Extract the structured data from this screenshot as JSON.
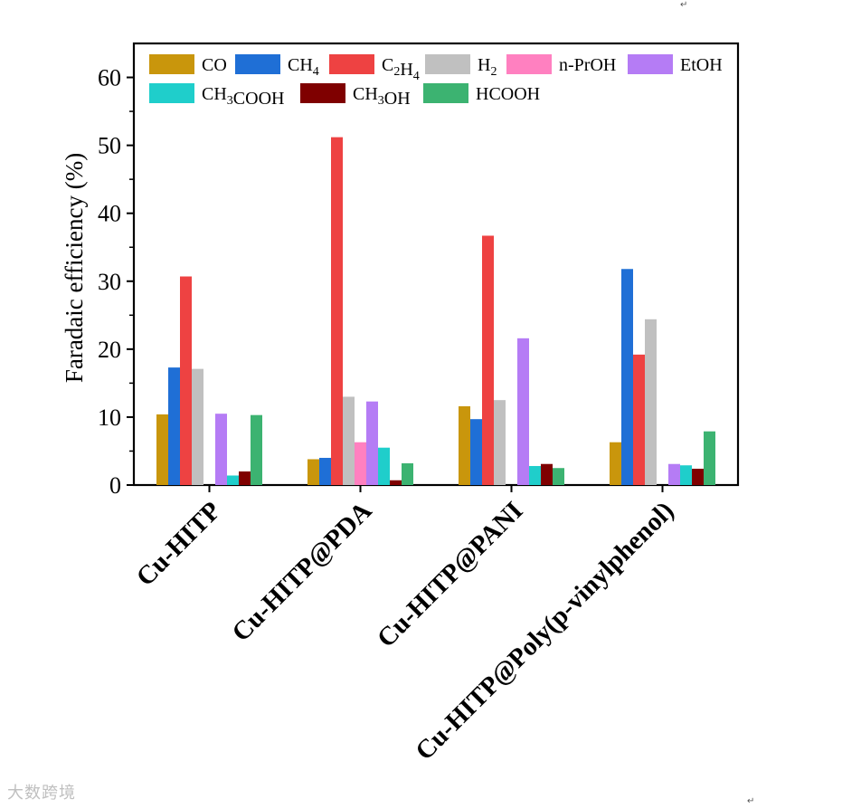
{
  "chart_data": {
    "type": "bar",
    "title": "",
    "xlabel": "",
    "ylabel": "Faradaic efficiency (%)",
    "ylim": [
      0,
      65
    ],
    "yticks": [
      0,
      10,
      20,
      30,
      40,
      50,
      60
    ],
    "categories": [
      "Cu-HITP",
      "Cu-HITP@PDA",
      "Cu-HITP@PANI",
      "Cu-HITP@Poly(p-vinylphenol)"
    ],
    "series": [
      {
        "name": "CO",
        "sub": "",
        "suffix": "",
        "color": "#C9960C",
        "values": [
          10.4,
          3.8,
          11.6,
          6.3
        ]
      },
      {
        "name": "CH",
        "sub": "4",
        "suffix": "",
        "color": "#1F6FD6",
        "values": [
          17.3,
          4.0,
          9.7,
          31.8
        ]
      },
      {
        "name": "C",
        "sub": "2",
        "name2": "H",
        "sub2": "4",
        "suffix": "",
        "color": "#EE4242",
        "values": [
          30.7,
          51.2,
          36.7,
          19.2
        ]
      },
      {
        "name": "H",
        "sub": "2",
        "suffix": "",
        "color": "#C0C0C0",
        "values": [
          17.1,
          13.0,
          12.5,
          24.4
        ]
      },
      {
        "name": "n-PrOH",
        "sub": "",
        "suffix": "",
        "color": "#FF80C0",
        "values": [
          0,
          6.3,
          0,
          0
        ]
      },
      {
        "name": "EtOH",
        "sub": "",
        "suffix": "",
        "color": "#B57CF5",
        "values": [
          10.5,
          12.3,
          21.6,
          3.1
        ]
      },
      {
        "name": "CH",
        "sub": "3",
        "suffix": "COOH",
        "color": "#1FCECB",
        "values": [
          1.4,
          5.5,
          2.8,
          2.9
        ]
      },
      {
        "name": "CH",
        "sub": "3",
        "suffix": "OH",
        "color": "#7F0000",
        "values": [
          2.0,
          0.7,
          3.1,
          2.4
        ]
      },
      {
        "name": "HCOOH",
        "sub": "",
        "suffix": "",
        "color": "#3CB371",
        "values": [
          10.3,
          3.2,
          2.5,
          7.9
        ]
      }
    ],
    "legend_position": "top-inside"
  },
  "marks": {
    "return_symbol": "↵"
  },
  "watermark": {
    "text": "大数跨境"
  }
}
